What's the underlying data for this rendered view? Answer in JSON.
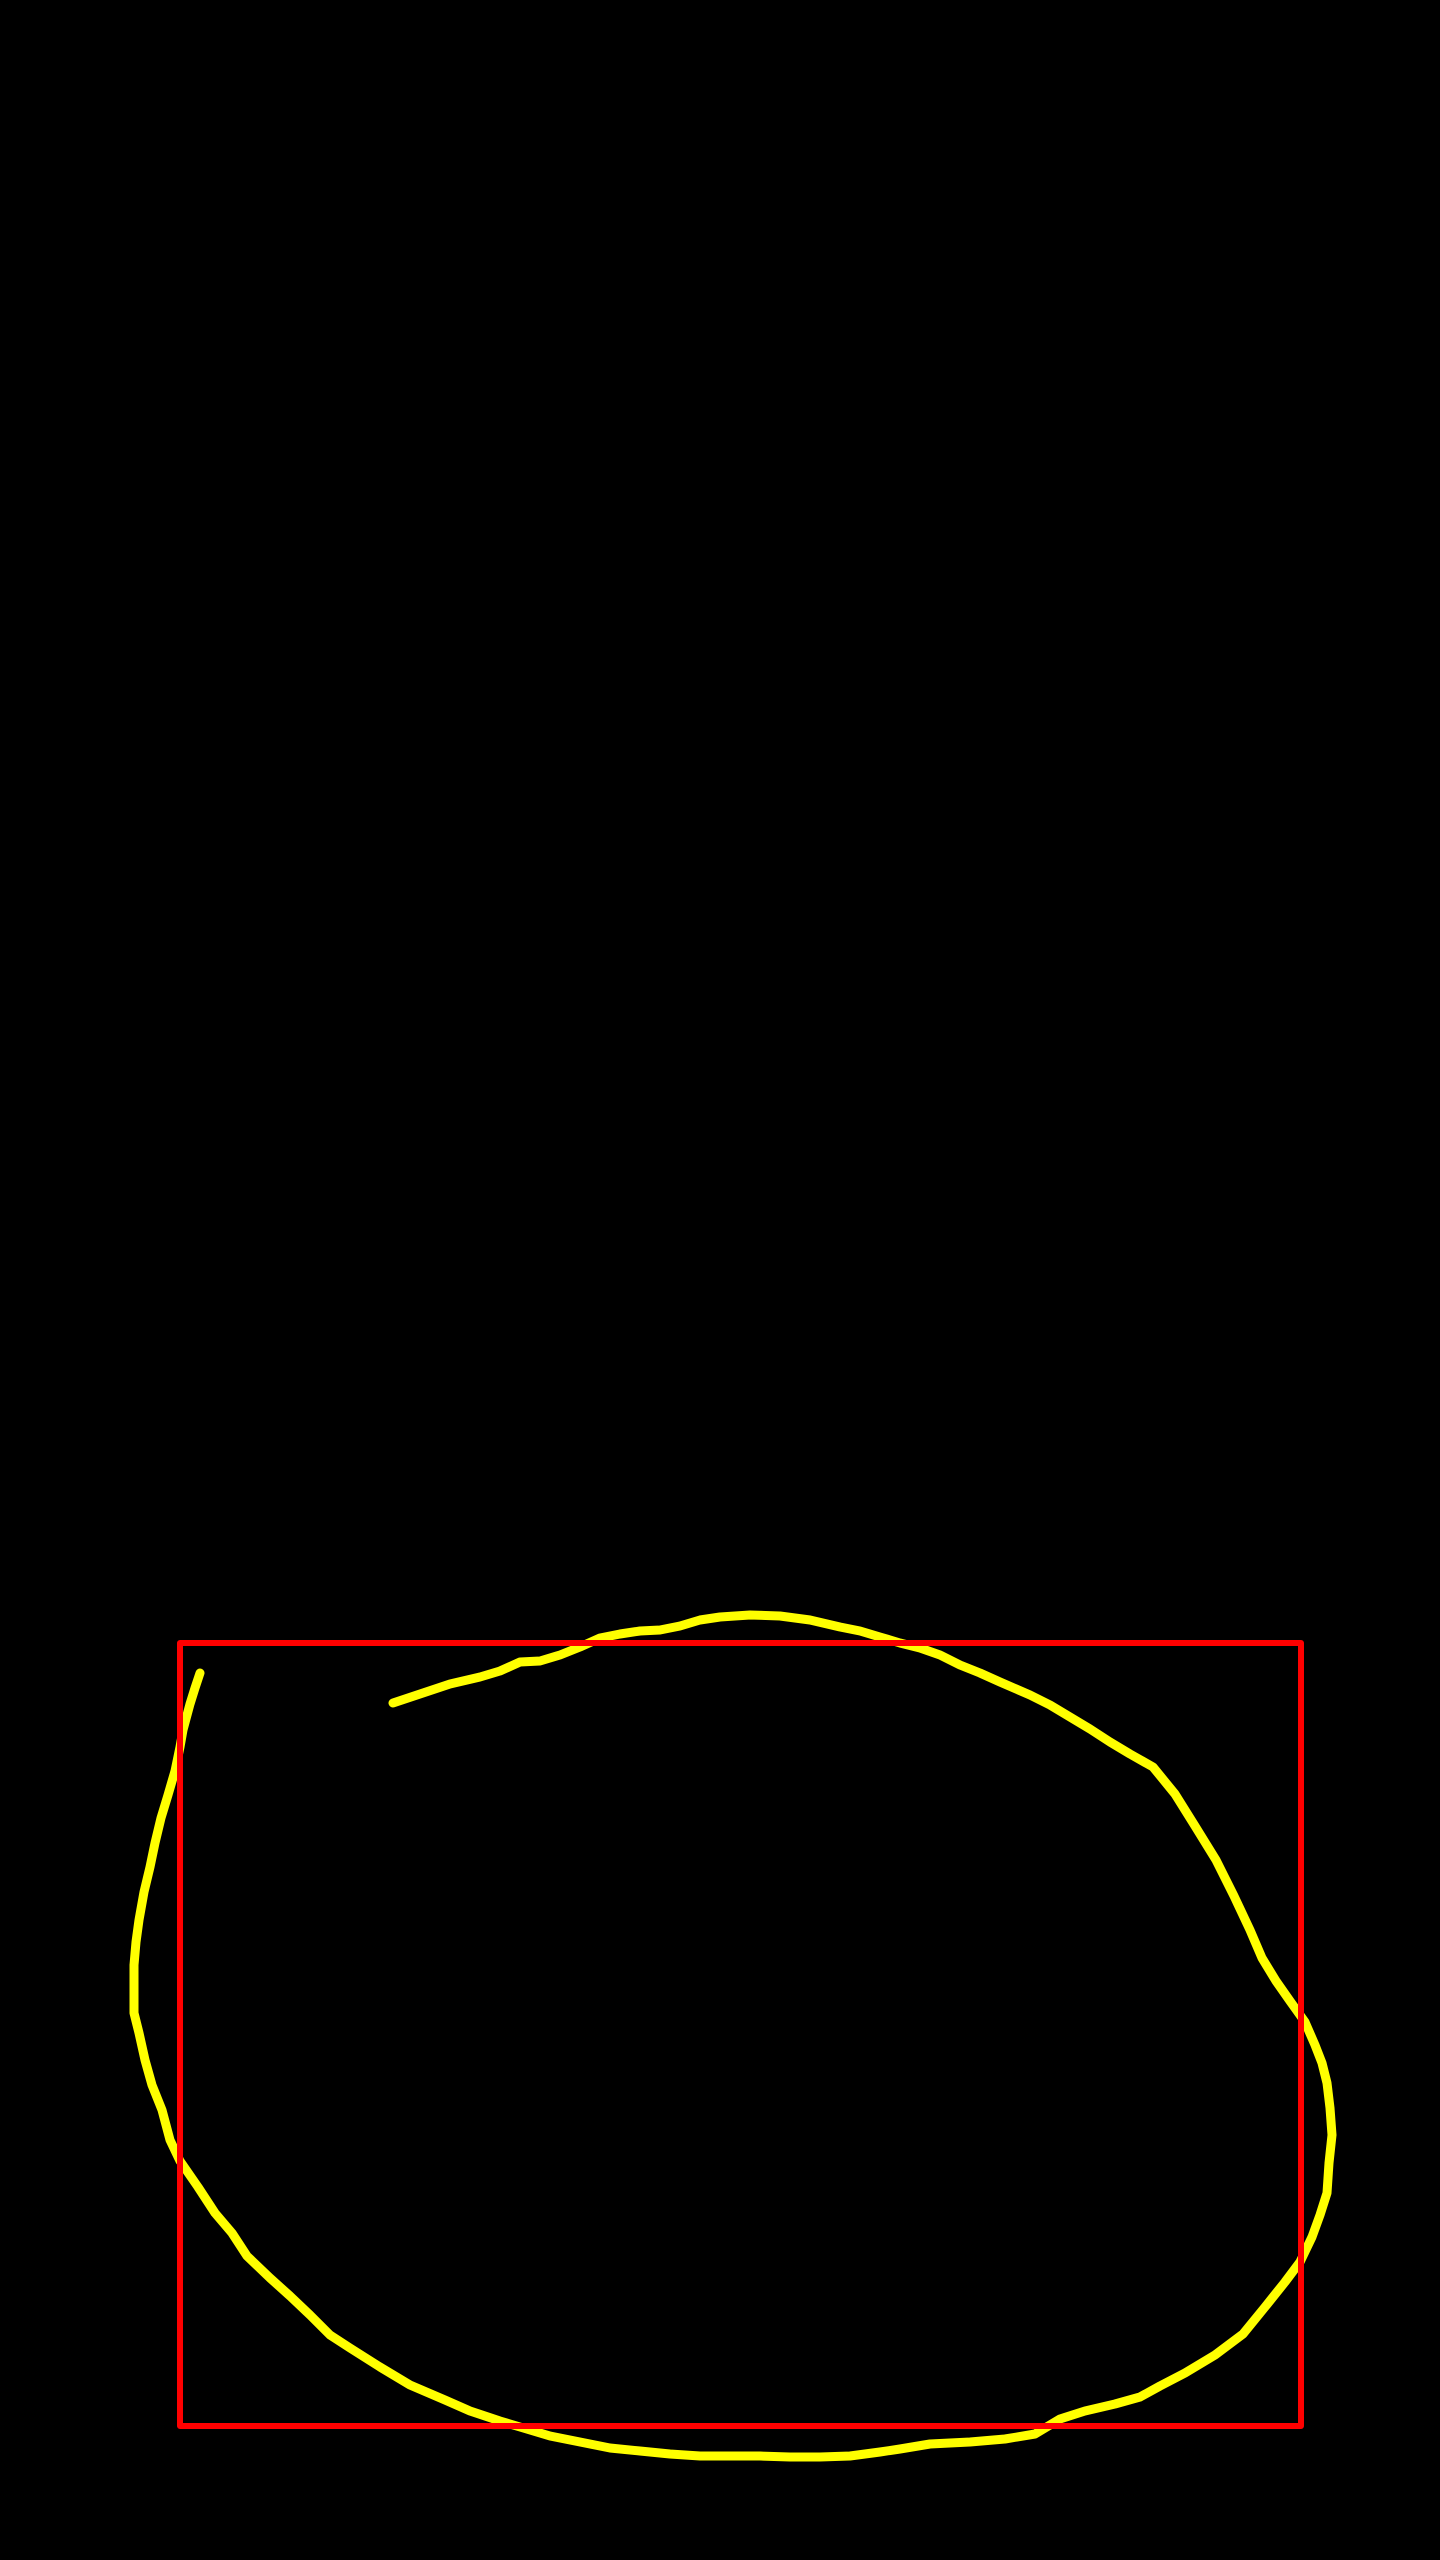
{
  "canvas": {
    "background_color": "#000000"
  },
  "annotations": {
    "freehand_stroke": {
      "color": "#FFFF00",
      "shape": "open loop"
    },
    "bounding_box": {
      "color": "#FF0000",
      "shape": "rectangle"
    }
  }
}
